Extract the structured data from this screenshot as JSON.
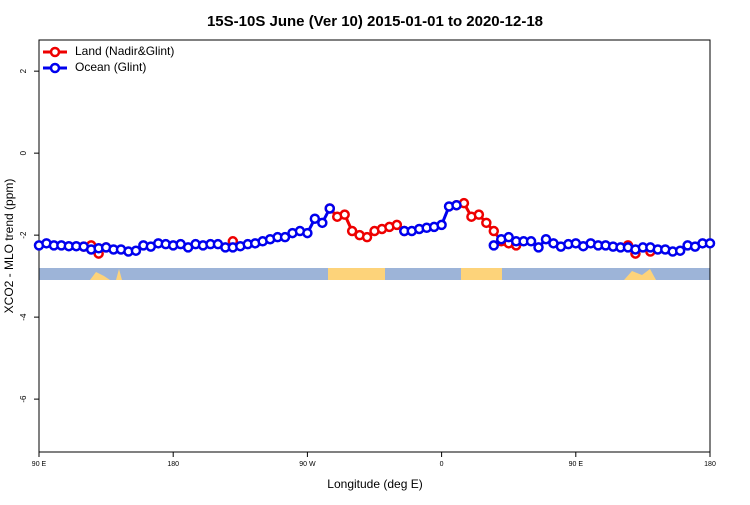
{
  "chart_data": {
    "type": "line",
    "title": "15S-10S June (Ver 10)   2015-01-01 to 2020-12-18",
    "x_label": "Longitude (deg E)",
    "y_label": "XCO2 - MLO trend (ppm)",
    "x": [
      90,
      95,
      100,
      105,
      110,
      115,
      120,
      125,
      130,
      135,
      140,
      145,
      150,
      155,
      160,
      165,
      170,
      175,
      180,
      185,
      190,
      195,
      200,
      205,
      210,
      215,
      220,
      225,
      230,
      235,
      240,
      245,
      250,
      255,
      260,
      265,
      270,
      275,
      280,
      285,
      290,
      295,
      300,
      305,
      310,
      315,
      320,
      325,
      330,
      335,
      340,
      345,
      350,
      355,
      360,
      365,
      370,
      375,
      380,
      385,
      390,
      395,
      400,
      405,
      410,
      415,
      420,
      425,
      430,
      435,
      440,
      445,
      450,
      455,
      460,
      465,
      470,
      475,
      480,
      485,
      490,
      495,
      500,
      505,
      510,
      515,
      520,
      525,
      530,
      535,
      540
    ],
    "series": [
      {
        "name": "Land (Nadir&Glint)",
        "color": "#ee0000",
        "values": [
          null,
          null,
          null,
          null,
          null,
          null,
          -2.28,
          -2.25,
          -2.45,
          -2.3,
          null,
          null,
          null,
          null,
          null,
          null,
          null,
          null,
          null,
          null,
          null,
          null,
          null,
          null,
          null,
          null,
          -2.15,
          null,
          null,
          null,
          null,
          null,
          null,
          null,
          null,
          null,
          null,
          null,
          null,
          -1.35,
          -1.55,
          -1.5,
          -1.9,
          -2.0,
          -2.05,
          -1.9,
          -1.85,
          -1.8,
          -1.75,
          -1.9,
          null,
          null,
          null,
          null,
          null,
          null,
          -1.27,
          -1.22,
          -1.55,
          -1.5,
          -1.7,
          -1.9,
          -2.15,
          -2.2,
          -2.25,
          null,
          null,
          null,
          null,
          null,
          null,
          null,
          null,
          null,
          null,
          null,
          null,
          null,
          null,
          -2.25,
          -2.45,
          null,
          -2.4,
          null,
          null,
          null,
          null,
          null,
          null,
          null,
          null
        ]
      },
      {
        "name": "Ocean (Glint)",
        "color": "#0000ee",
        "values": [
          -2.25,
          -2.2,
          -2.25,
          -2.25,
          -2.27,
          -2.27,
          -2.28,
          -2.35,
          -2.32,
          -2.3,
          -2.35,
          -2.35,
          -2.4,
          -2.38,
          -2.25,
          -2.28,
          -2.2,
          -2.22,
          -2.25,
          -2.22,
          -2.3,
          -2.22,
          -2.25,
          -2.22,
          -2.22,
          -2.3,
          -2.3,
          -2.27,
          -2.22,
          -2.2,
          -2.15,
          -2.1,
          -2.05,
          -2.05,
          -1.95,
          -1.9,
          -1.95,
          -1.6,
          -1.7,
          -1.35,
          null,
          null,
          null,
          null,
          null,
          null,
          null,
          null,
          null,
          -1.9,
          -1.9,
          -1.85,
          -1.82,
          -1.8,
          -1.75,
          -1.3,
          -1.27,
          null,
          null,
          null,
          null,
          -2.25,
          -2.1,
          -2.05,
          -2.15,
          -2.15,
          -2.15,
          -2.3,
          -2.1,
          -2.2,
          -2.28,
          -2.22,
          -2.2,
          -2.27,
          -2.2,
          -2.25,
          -2.25,
          -2.28,
          -2.3,
          -2.3,
          -2.35,
          -2.3,
          -2.3,
          -2.35,
          -2.35,
          -2.4,
          -2.38,
          -2.25,
          -2.28,
          -2.2,
          -2.2
        ]
      }
    ],
    "xlim": [
      90,
      540
    ],
    "xticks": [
      {
        "value": 90,
        "label": "90 E"
      },
      180,
      {
        "value": 270,
        "label": "90 W"
      },
      {
        "value": 360,
        "label": "0"
      },
      {
        "value": 450,
        "label": "90 E"
      },
      {
        "value": 540,
        "label": "180"
      }
    ],
    "ylim": [
      -7.29,
      2.76
    ],
    "yticks": [
      2,
      0,
      -2,
      -4,
      -6
    ],
    "legend": "top-left"
  }
}
